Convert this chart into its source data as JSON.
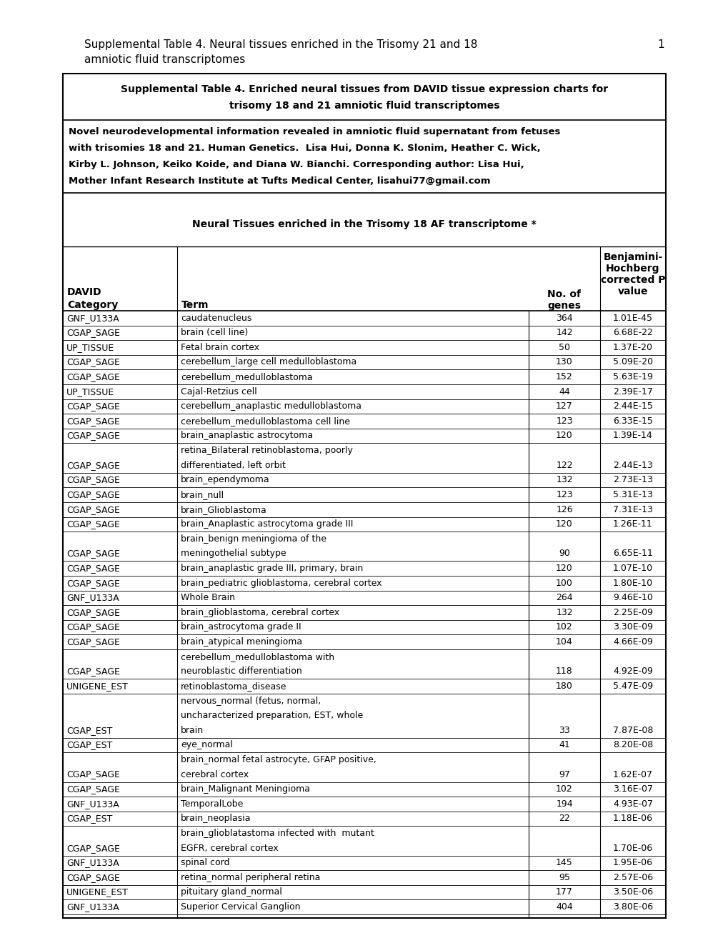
{
  "page_title_line1": "Supplemental Table 4. Neural tissues enriched in the Trisomy 21 and 18",
  "page_title_line2": "amniotic fluid transcriptomes",
  "page_number": "1",
  "box_title_line1": "Supplemental Table 4. Enriched neural tissues from DAVID tissue expression charts for",
  "box_title_line2": "trisomy 18 and 21 amniotic fluid transcriptomes",
  "citation_lines": [
    "Novel neurodevelopmental information revealed in amniotic fluid supernatant from fetuses",
    "with trisomies 18 and 21. Human Genetics.  Lisa Hui, Donna K. Slonim, Heather C. Wick,",
    "Kirby L. Johnson, Keiko Koide, and Diana W. Bianchi. Corresponding author: Lisa Hui,",
    "Mother Infant Research Institute at Tufts Medical Center, lisahui77@gmail.com"
  ],
  "section_title": "Neural Tissues enriched in the Trisomy 18 AF transcriptome *",
  "rows": [
    [
      "GNF_U133A",
      "caudatenucleus",
      "364",
      "1.01E-45"
    ],
    [
      "CGAP_SAGE",
      "brain (cell line)",
      "142",
      "6.68E-22"
    ],
    [
      "UP_TISSUE",
      "Fetal brain cortex",
      "50",
      "1.37E-20"
    ],
    [
      "CGAP_SAGE",
      "cerebellum_large cell medulloblastoma",
      "130",
      "5.09E-20"
    ],
    [
      "CGAP_SAGE",
      "cerebellum_medulloblastoma",
      "152",
      "5.63E-19"
    ],
    [
      "UP_TISSUE",
      "Cajal-Retzius cell",
      "44",
      "2.39E-17"
    ],
    [
      "CGAP_SAGE",
      "cerebellum_anaplastic medulloblastoma",
      "127",
      "2.44E-15"
    ],
    [
      "CGAP_SAGE",
      "cerebellum_medulloblastoma cell line",
      "123",
      "6.33E-15"
    ],
    [
      "CGAP_SAGE",
      "brain_anaplastic astrocytoma",
      "120",
      "1.39E-14"
    ],
    [
      "CGAP_SAGE",
      "retina_Bilateral retinoblastoma, poorly\ndifferentiated, left orbit",
      "122",
      "2.44E-13"
    ],
    [
      "CGAP_SAGE",
      "brain_ependymoma",
      "132",
      "2.73E-13"
    ],
    [
      "CGAP_SAGE",
      "brain_null",
      "123",
      "5.31E-13"
    ],
    [
      "CGAP_SAGE",
      "brain_Glioblastoma",
      "126",
      "7.31E-13"
    ],
    [
      "CGAP_SAGE",
      "brain_Anaplastic astrocytoma grade III",
      "120",
      "1.26E-11"
    ],
    [
      "CGAP_SAGE",
      "brain_benign meningioma of the\nmeningothelial subtype",
      "90",
      "6.65E-11"
    ],
    [
      "CGAP_SAGE",
      "brain_anaplastic grade III, primary, brain",
      "120",
      "1.07E-10"
    ],
    [
      "CGAP_SAGE",
      "brain_pediatric glioblastoma, cerebral cortex",
      "100",
      "1.80E-10"
    ],
    [
      "GNF_U133A",
      "Whole Brain",
      "264",
      "9.46E-10"
    ],
    [
      "CGAP_SAGE",
      "brain_glioblastoma, cerebral cortex",
      "132",
      "2.25E-09"
    ],
    [
      "CGAP_SAGE",
      "brain_astrocytoma grade II",
      "102",
      "3.30E-09"
    ],
    [
      "CGAP_SAGE",
      "brain_atypical meningioma",
      "104",
      "4.66E-09"
    ],
    [
      "CGAP_SAGE",
      "cerebellum_medulloblastoma with\nneuroblastic differentiation",
      "118",
      "4.92E-09"
    ],
    [
      "UNIGENE_EST",
      "retinoblastoma_disease",
      "180",
      "5.47E-09"
    ],
    [
      "CGAP_EST",
      "nervous_normal (fetus, normal,\nuncharacterized preparation, EST, whole\nbrain",
      "33",
      "7.87E-08"
    ],
    [
      "CGAP_EST",
      "eye_normal",
      "41",
      "8.20E-08"
    ],
    [
      "CGAP_SAGE",
      "brain_normal fetal astrocyte, GFAP positive,\ncerebral cortex",
      "97",
      "1.62E-07"
    ],
    [
      "CGAP_SAGE",
      "brain_Malignant Meningioma",
      "102",
      "3.16E-07"
    ],
    [
      "GNF_U133A",
      "TemporalLobe",
      "194",
      "4.93E-07"
    ],
    [
      "CGAP_EST",
      "brain_neoplasia",
      "22",
      "1.18E-06"
    ],
    [
      "CGAP_SAGE",
      "brain_glioblatastoma infected with  mutant\nEGFR, cerebral cortex",
      "",
      "1.70E-06"
    ],
    [
      "GNF_U133A",
      "spinal cord",
      "145",
      "1.95E-06"
    ],
    [
      "CGAP_SAGE",
      "retina_normal peripheral retina",
      "95",
      "2.57E-06"
    ],
    [
      "UNIGENE_EST",
      "pituitary gland_normal",
      "177",
      "3.50E-06"
    ],
    [
      "GNF_U133A",
      "Superior Cervical Ganglion",
      "404",
      "3.80E-06"
    ]
  ]
}
